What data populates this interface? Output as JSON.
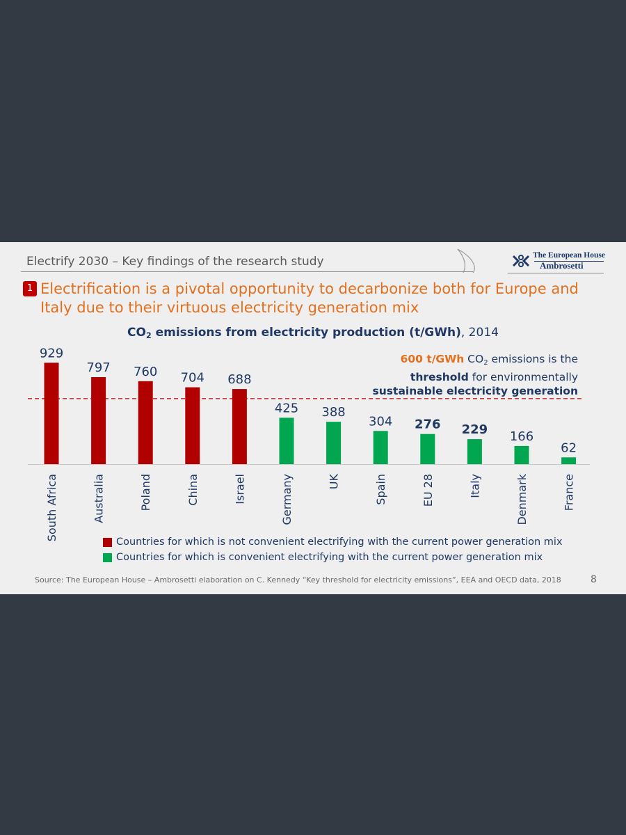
{
  "header": {
    "title": "Electrify 2030 – Key findings of the research study"
  },
  "logo": {
    "line1": "The European House",
    "line2": "Ambrosetti"
  },
  "badge": "1",
  "main_title": "Electrification is a pivotal opportunity to decarbonize both for Europe and Italy due to their virtuous electricity generation mix",
  "chart_header": {
    "prefix": "CO",
    "sub": "2",
    "rest": " emissions from electricity production (t/GWh)",
    "year": ", 2014"
  },
  "threshold_note": {
    "value": "600 t/GWh",
    "co": " CO",
    "sub": "2",
    "mid": " emissions is the",
    "bold1": "threshold",
    "mid2": " for environmentally",
    "bold2": "sustainable electricity generation"
  },
  "chart_data": {
    "type": "bar",
    "title": "CO2 emissions from electricity production (t/GWh), 2014",
    "categories": [
      "South Africa",
      "Australia",
      "Poland",
      "China",
      "Israel",
      "Germany",
      "UK",
      "Spain",
      "EU 28",
      "Italy",
      "Denmark",
      "France"
    ],
    "values": [
      929,
      797,
      760,
      704,
      688,
      425,
      388,
      304,
      276,
      229,
      166,
      62
    ],
    "bold_labels": [
      "EU 28",
      "Italy"
    ],
    "ylim": [
      0,
      950
    ],
    "threshold": 600,
    "series_colors": {
      "not_convenient": "#b00000",
      "convenient": "#00a650"
    },
    "label_color": "#1f3864",
    "threshold_color": "#c00000"
  },
  "legend": [
    {
      "label": "Countries for which is not convenient electrifying with the current power generation mix",
      "color": "#b00000"
    },
    {
      "label": "Countries for which is convenient electrifying with the current power generation mix",
      "color": "#00a650"
    }
  ],
  "source": "Source: The European House – Ambrosetti elaboration on C. Kennedy “Key threshold for electricity emissions”, EEA and OECD data, 2018",
  "page_number": "8"
}
